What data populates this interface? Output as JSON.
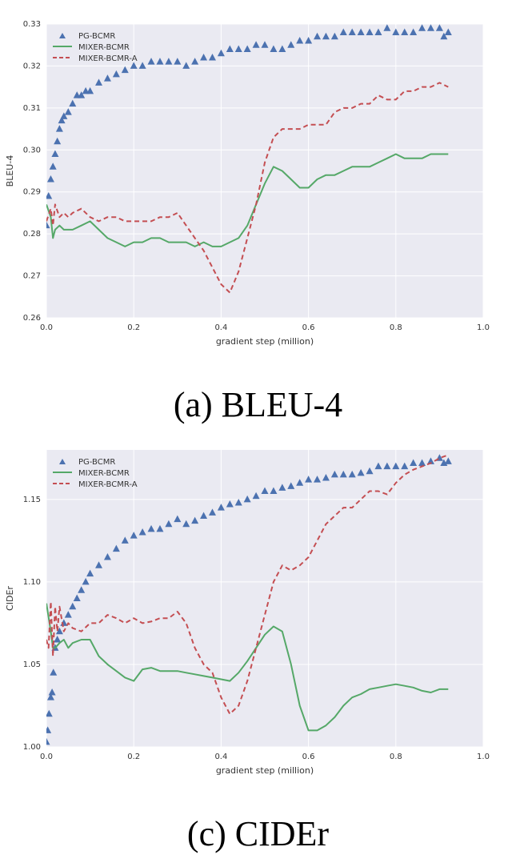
{
  "chart_data": [
    {
      "type": "line",
      "caption": "(a) BLEU-4",
      "xlabel": "gradient step (million)",
      "ylabel": "BLEU-4",
      "xlim": [
        0,
        1.0
      ],
      "ylim": [
        0.26,
        0.33
      ],
      "xticks": [
        "0.0",
        "0.2",
        "0.4",
        "0.6",
        "0.8",
        "1.0"
      ],
      "xtick_values": [
        0,
        0.2,
        0.4,
        0.6,
        0.8,
        1.0
      ],
      "yticks": [
        "0.26",
        "0.27",
        "0.28",
        "0.29",
        "0.30",
        "0.31",
        "0.32",
        "0.33"
      ],
      "ytick_values": [
        0.26,
        0.27,
        0.28,
        0.29,
        0.3,
        0.31,
        0.32,
        0.33
      ],
      "grid": true,
      "legend_position": "top-left",
      "series": [
        {
          "name": "PG-BCMR",
          "style": "triangle-markers",
          "color": "#4c72b0",
          "x": [
            0.0,
            0.005,
            0.01,
            0.015,
            0.02,
            0.025,
            0.03,
            0.035,
            0.04,
            0.05,
            0.06,
            0.07,
            0.08,
            0.09,
            0.1,
            0.12,
            0.14,
            0.16,
            0.18,
            0.2,
            0.22,
            0.24,
            0.26,
            0.28,
            0.3,
            0.32,
            0.34,
            0.36,
            0.38,
            0.4,
            0.42,
            0.44,
            0.46,
            0.48,
            0.5,
            0.52,
            0.54,
            0.56,
            0.58,
            0.6,
            0.62,
            0.64,
            0.66,
            0.68,
            0.7,
            0.72,
            0.74,
            0.76,
            0.78,
            0.8,
            0.82,
            0.84,
            0.86,
            0.88,
            0.9,
            0.91,
            0.92
          ],
          "y": [
            0.282,
            0.289,
            0.293,
            0.296,
            0.299,
            0.302,
            0.305,
            0.307,
            0.308,
            0.309,
            0.311,
            0.313,
            0.313,
            0.314,
            0.314,
            0.316,
            0.317,
            0.318,
            0.319,
            0.32,
            0.32,
            0.321,
            0.321,
            0.321,
            0.321,
            0.32,
            0.321,
            0.322,
            0.322,
            0.323,
            0.324,
            0.324,
            0.324,
            0.325,
            0.325,
            0.324,
            0.324,
            0.325,
            0.326,
            0.326,
            0.327,
            0.327,
            0.327,
            0.328,
            0.328,
            0.328,
            0.328,
            0.328,
            0.329,
            0.328,
            0.328,
            0.328,
            0.329,
            0.329,
            0.329,
            0.327,
            0.328
          ]
        },
        {
          "name": "MIXER-BCMR",
          "style": "solid",
          "color": "#55a868",
          "x": [
            0.0,
            0.01,
            0.015,
            0.02,
            0.03,
            0.04,
            0.05,
            0.06,
            0.08,
            0.1,
            0.12,
            0.14,
            0.16,
            0.18,
            0.2,
            0.22,
            0.24,
            0.26,
            0.28,
            0.3,
            0.32,
            0.34,
            0.36,
            0.38,
            0.4,
            0.42,
            0.44,
            0.46,
            0.48,
            0.5,
            0.52,
            0.54,
            0.56,
            0.58,
            0.6,
            0.62,
            0.64,
            0.66,
            0.68,
            0.7,
            0.72,
            0.74,
            0.76,
            0.78,
            0.8,
            0.82,
            0.84,
            0.86,
            0.88,
            0.9,
            0.92
          ],
          "y": [
            0.287,
            0.284,
            0.279,
            0.281,
            0.282,
            0.281,
            0.281,
            0.281,
            0.282,
            0.283,
            0.281,
            0.279,
            0.278,
            0.277,
            0.278,
            0.278,
            0.279,
            0.279,
            0.278,
            0.278,
            0.278,
            0.277,
            0.278,
            0.277,
            0.277,
            0.278,
            0.279,
            0.282,
            0.287,
            0.292,
            0.296,
            0.295,
            0.293,
            0.291,
            0.291,
            0.293,
            0.294,
            0.294,
            0.295,
            0.296,
            0.296,
            0.296,
            0.297,
            0.298,
            0.299,
            0.298,
            0.298,
            0.298,
            0.299,
            0.299,
            0.299
          ]
        },
        {
          "name": "MIXER-BCMR-A",
          "style": "dashed",
          "color": "#c44e52",
          "x": [
            0.0,
            0.01,
            0.015,
            0.02,
            0.03,
            0.04,
            0.05,
            0.06,
            0.08,
            0.1,
            0.12,
            0.14,
            0.16,
            0.18,
            0.2,
            0.22,
            0.24,
            0.26,
            0.28,
            0.3,
            0.32,
            0.34,
            0.36,
            0.38,
            0.4,
            0.42,
            0.44,
            0.46,
            0.48,
            0.5,
            0.52,
            0.54,
            0.56,
            0.58,
            0.6,
            0.62,
            0.64,
            0.66,
            0.68,
            0.7,
            0.72,
            0.74,
            0.76,
            0.78,
            0.8,
            0.82,
            0.84,
            0.86,
            0.88,
            0.9,
            0.92
          ],
          "y": [
            0.283,
            0.286,
            0.282,
            0.287,
            0.284,
            0.285,
            0.284,
            0.285,
            0.286,
            0.284,
            0.283,
            0.284,
            0.284,
            0.283,
            0.283,
            0.283,
            0.283,
            0.284,
            0.284,
            0.285,
            0.282,
            0.279,
            0.276,
            0.272,
            0.268,
            0.266,
            0.271,
            0.279,
            0.287,
            0.297,
            0.303,
            0.305,
            0.305,
            0.305,
            0.306,
            0.306,
            0.306,
            0.309,
            0.31,
            0.31,
            0.311,
            0.311,
            0.313,
            0.312,
            0.312,
            0.314,
            0.314,
            0.315,
            0.315,
            0.316,
            0.315
          ]
        }
      ]
    },
    {
      "type": "line",
      "caption": "(c) CIDEr",
      "xlabel": "gradient step (million)",
      "ylabel": "CIDEr",
      "xlim": [
        0,
        1.0
      ],
      "ylim": [
        1.0,
        1.18
      ],
      "xticks": [
        "0.0",
        "0.2",
        "0.4",
        "0.6",
        "0.8",
        "1.0"
      ],
      "xtick_values": [
        0,
        0.2,
        0.4,
        0.6,
        0.8,
        1.0
      ],
      "yticks": [
        "1.00",
        "1.05",
        "1.10",
        "1.15"
      ],
      "ytick_values": [
        1.0,
        1.05,
        1.1,
        1.15
      ],
      "grid": true,
      "legend_position": "top-left",
      "series": [
        {
          "name": "PG-BCMR",
          "style": "triangle-markers",
          "color": "#4c72b0",
          "x": [
            0.0,
            0.003,
            0.006,
            0.01,
            0.013,
            0.016,
            0.02,
            0.025,
            0.03,
            0.04,
            0.05,
            0.06,
            0.07,
            0.08,
            0.09,
            0.1,
            0.12,
            0.14,
            0.16,
            0.18,
            0.2,
            0.22,
            0.24,
            0.26,
            0.28,
            0.3,
            0.32,
            0.34,
            0.36,
            0.38,
            0.4,
            0.42,
            0.44,
            0.46,
            0.48,
            0.5,
            0.52,
            0.54,
            0.56,
            0.58,
            0.6,
            0.62,
            0.64,
            0.66,
            0.68,
            0.7,
            0.72,
            0.74,
            0.76,
            0.78,
            0.8,
            0.82,
            0.84,
            0.86,
            0.88,
            0.9,
            0.91,
            0.92
          ],
          "y": [
            1.003,
            1.01,
            1.02,
            1.03,
            1.033,
            1.045,
            1.06,
            1.065,
            1.07,
            1.075,
            1.08,
            1.085,
            1.09,
            1.095,
            1.1,
            1.105,
            1.11,
            1.115,
            1.12,
            1.125,
            1.128,
            1.13,
            1.132,
            1.132,
            1.135,
            1.138,
            1.135,
            1.137,
            1.14,
            1.142,
            1.145,
            1.147,
            1.148,
            1.15,
            1.152,
            1.155,
            1.155,
            1.157,
            1.158,
            1.16,
            1.162,
            1.162,
            1.163,
            1.165,
            1.165,
            1.165,
            1.166,
            1.167,
            1.17,
            1.17,
            1.17,
            1.17,
            1.172,
            1.172,
            1.173,
            1.175,
            1.172,
            1.173
          ]
        },
        {
          "name": "MIXER-BCMR",
          "style": "solid",
          "color": "#55a868",
          "x": [
            0.0,
            0.01,
            0.015,
            0.02,
            0.03,
            0.04,
            0.05,
            0.06,
            0.08,
            0.1,
            0.12,
            0.14,
            0.16,
            0.18,
            0.2,
            0.22,
            0.24,
            0.26,
            0.28,
            0.3,
            0.32,
            0.34,
            0.36,
            0.38,
            0.4,
            0.42,
            0.44,
            0.46,
            0.48,
            0.5,
            0.52,
            0.54,
            0.56,
            0.58,
            0.6,
            0.62,
            0.64,
            0.66,
            0.68,
            0.7,
            0.72,
            0.74,
            0.76,
            0.78,
            0.8,
            0.82,
            0.84,
            0.86,
            0.88,
            0.9,
            0.92
          ],
          "y": [
            1.087,
            1.07,
            1.06,
            1.06,
            1.063,
            1.065,
            1.06,
            1.063,
            1.065,
            1.065,
            1.055,
            1.05,
            1.046,
            1.042,
            1.04,
            1.047,
            1.048,
            1.046,
            1.046,
            1.046,
            1.045,
            1.044,
            1.043,
            1.042,
            1.041,
            1.04,
            1.045,
            1.052,
            1.06,
            1.068,
            1.073,
            1.07,
            1.05,
            1.025,
            1.01,
            1.01,
            1.013,
            1.018,
            1.025,
            1.03,
            1.032,
            1.035,
            1.036,
            1.037,
            1.038,
            1.037,
            1.036,
            1.034,
            1.033,
            1.035,
            1.035
          ]
        },
        {
          "name": "MIXER-BCMR-A",
          "style": "dashed",
          "color": "#c44e52",
          "x": [
            0.0,
            0.005,
            0.01,
            0.015,
            0.02,
            0.025,
            0.03,
            0.04,
            0.05,
            0.06,
            0.08,
            0.1,
            0.12,
            0.14,
            0.16,
            0.18,
            0.2,
            0.22,
            0.24,
            0.26,
            0.28,
            0.3,
            0.32,
            0.34,
            0.36,
            0.38,
            0.4,
            0.42,
            0.44,
            0.46,
            0.48,
            0.5,
            0.52,
            0.54,
            0.56,
            0.58,
            0.6,
            0.62,
            0.64,
            0.66,
            0.68,
            0.7,
            0.72,
            0.74,
            0.76,
            0.78,
            0.8,
            0.82,
            0.84,
            0.86,
            0.88,
            0.9,
            0.92
          ],
          "y": [
            1.065,
            1.06,
            1.088,
            1.055,
            1.085,
            1.07,
            1.085,
            1.07,
            1.075,
            1.072,
            1.07,
            1.075,
            1.075,
            1.08,
            1.078,
            1.075,
            1.078,
            1.075,
            1.076,
            1.078,
            1.078,
            1.082,
            1.075,
            1.06,
            1.05,
            1.045,
            1.03,
            1.02,
            1.025,
            1.04,
            1.06,
            1.08,
            1.1,
            1.11,
            1.107,
            1.11,
            1.115,
            1.125,
            1.135,
            1.14,
            1.145,
            1.145,
            1.15,
            1.155,
            1.155,
            1.153,
            1.16,
            1.165,
            1.168,
            1.17,
            1.172,
            1.175,
            1.177
          ]
        }
      ]
    }
  ]
}
